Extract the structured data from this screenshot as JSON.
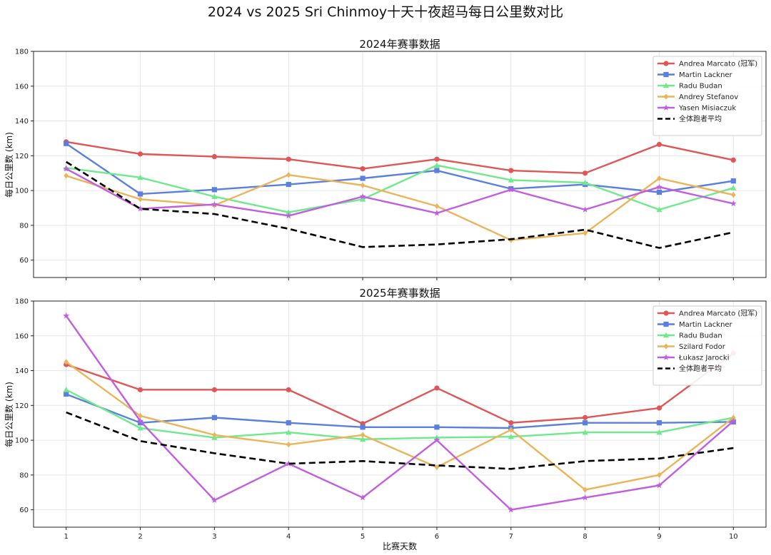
{
  "chart_data": {
    "type": "line",
    "title": "2024 vs 2025 Sri Chinmoy十天十夜超马每日公里数对比",
    "xlabel": "比赛天数",
    "x": [
      1,
      2,
      3,
      4,
      5,
      6,
      7,
      8,
      9,
      10
    ],
    "grid": true,
    "legend_position": "top-right",
    "panels": [
      {
        "title": "2024年赛事数据",
        "ylabel": "每日公里数 (km)",
        "ylim": [
          50,
          180
        ],
        "yticks": [
          60,
          80,
          100,
          120,
          140,
          160,
          180
        ],
        "series": [
          {
            "name": "Andrea Marcato (冠军)",
            "color": "#e05555",
            "marker": "circle",
            "values": [
              128,
              121,
              119.5,
              118,
              112.5,
              118,
              111.5,
              110,
              126.5,
              117.5
            ]
          },
          {
            "name": "Martin Lackner",
            "color": "#5a7fdc",
            "marker": "square",
            "values": [
              127,
              98,
              100.5,
              103.5,
              107,
              111.5,
              101,
              103.5,
              99,
              105.5
            ]
          },
          {
            "name": "Radu Budan",
            "color": "#6eea8c",
            "marker": "triangle",
            "values": [
              113,
              107.5,
              96.5,
              87.5,
              95,
              114.5,
              106,
              104.5,
              89,
              101.5
            ]
          },
          {
            "name": "Andrey Stefanov",
            "color": "#eab458",
            "marker": "diamond",
            "values": [
              108.5,
              95,
              91.5,
              109,
              103,
              91,
              71.5,
              75.5,
              107,
              97.5
            ]
          },
          {
            "name": "Yasen Misiaczuk",
            "color": "#c15ee0",
            "marker": "star",
            "values": [
              112.5,
              89.5,
              92,
              85.5,
              96.5,
              87,
              100.5,
              89,
              102,
              92.5
            ]
          },
          {
            "name": "全体跑者平均",
            "color": "#000000",
            "marker": "none",
            "dashed": true,
            "values": [
              116.5,
              89.5,
              86.5,
              78,
              67.5,
              69,
              72,
              77.5,
              67,
              76
            ]
          }
        ]
      },
      {
        "title": "2025年赛事数据",
        "ylabel": "每日公里数 (km)",
        "ylim": [
          50,
          180
        ],
        "yticks": [
          60,
          80,
          100,
          120,
          140,
          160,
          180
        ],
        "series": [
          {
            "name": "Andrea Marcato (冠军)",
            "color": "#e05555",
            "marker": "circle",
            "values": [
              143.5,
              129,
              129,
              129,
              109.5,
              130,
              110,
              113,
              118.5,
              150
            ]
          },
          {
            "name": "Martin Lackner",
            "color": "#5a7fdc",
            "marker": "square",
            "values": [
              126.5,
              110,
              113,
              110,
              107.5,
              107.5,
              107,
              110,
              110,
              110.5
            ]
          },
          {
            "name": "Radu Budan",
            "color": "#6eea8c",
            "marker": "triangle",
            "values": [
              129,
              107,
              101.5,
              104.5,
              100.5,
              101.5,
              102,
              104.5,
              104.5,
              113
            ]
          },
          {
            "name": "Szilard Fodor",
            "color": "#eab458",
            "marker": "diamond",
            "values": [
              145,
              114,
              103,
              97.5,
              103,
              84.5,
              106,
              71.5,
              80,
              113
            ]
          },
          {
            "name": "Łukasz Jarocki",
            "color": "#c15ee0",
            "marker": "star",
            "values": [
              171.5,
              111,
              65.5,
              86.5,
              67,
              100,
              60,
              67,
              74,
              111
            ]
          },
          {
            "name": "全体跑者平均",
            "color": "#000000",
            "marker": "none",
            "dashed": true,
            "values": [
              116,
              99.5,
              92.5,
              86.5,
              88,
              85.5,
              83.5,
              88,
              89.5,
              95.5
            ]
          }
        ]
      }
    ]
  }
}
